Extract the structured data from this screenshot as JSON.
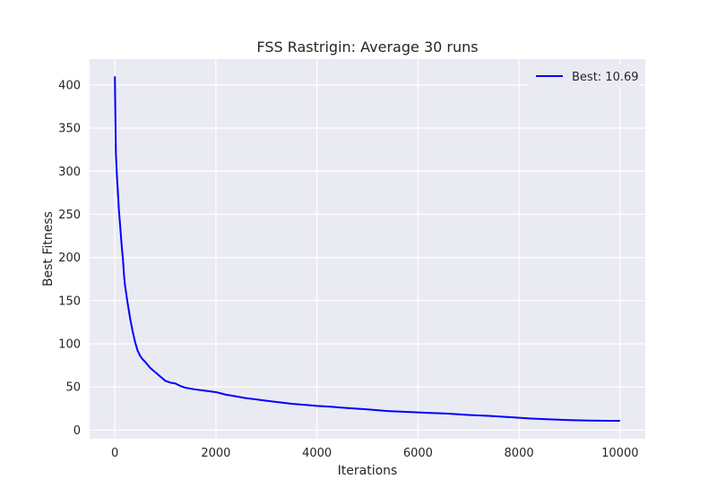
{
  "chart_data": {
    "type": "line",
    "title": "FSS Rastrigin: Average 30 runs",
    "xlabel": "Iterations",
    "ylabel": "Best Fitness",
    "xlim": [
      -500,
      10500
    ],
    "ylim": [
      -10,
      430
    ],
    "xticks": [
      0,
      2000,
      4000,
      6000,
      8000,
      10000
    ],
    "yticks": [
      0,
      50,
      100,
      150,
      200,
      250,
      300,
      350,
      400
    ],
    "grid": true,
    "legend_position": "top-right",
    "series": [
      {
        "name": "Best: 10.69",
        "color": "#0000ff",
        "x": [
          0,
          20,
          40,
          60,
          80,
          100,
          120,
          140,
          160,
          180,
          200,
          250,
          300,
          350,
          400,
          450,
          500,
          550,
          600,
          700,
          800,
          900,
          1000,
          1100,
          1200,
          1300,
          1400,
          1500,
          1600,
          1800,
          2000,
          2200,
          2400,
          2600,
          2800,
          3000,
          3200,
          3500,
          3800,
          4000,
          4300,
          4600,
          5000,
          5400,
          5800,
          6200,
          6600,
          7000,
          7400,
          7800,
          8200,
          8600,
          9000,
          9400,
          9800,
          10000
        ],
        "y": [
          410,
          320,
          295,
          275,
          255,
          240,
          225,
          210,
          198,
          180,
          168,
          148,
          130,
          115,
          102,
          92,
          86,
          82,
          79,
          72,
          67,
          62,
          57,
          55,
          54,
          51,
          49,
          48,
          47,
          45.5,
          44,
          41,
          39,
          37,
          35.5,
          34,
          32.5,
          30.5,
          29,
          28,
          27,
          25.5,
          24,
          22,
          21,
          20,
          19,
          17.5,
          16.5,
          15,
          13.5,
          12.5,
          11.5,
          11,
          10.7,
          10.69
        ]
      }
    ]
  }
}
